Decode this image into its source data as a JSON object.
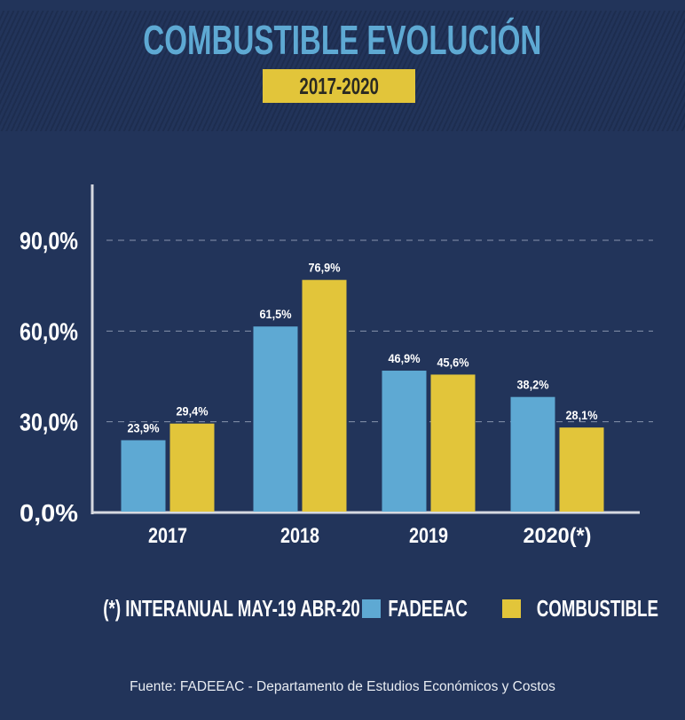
{
  "header": {
    "title": "COMBUSTIBLE EVOLUCIÓN",
    "period": "2017-2020"
  },
  "chart_data": {
    "type": "bar",
    "categories": [
      "2017",
      "2018",
      "2019",
      "2020(*)"
    ],
    "series": [
      {
        "name": "FADEEAC",
        "values": [
          23.9,
          61.5,
          46.9,
          38.2
        ],
        "labels": [
          "23,9%",
          "61,5%",
          "46,9%",
          "38,2%"
        ],
        "color": "#5ea9d3"
      },
      {
        "name": "COMBUSTIBLE",
        "values": [
          29.4,
          76.9,
          45.6,
          28.1
        ],
        "labels": [
          "29,4%",
          "76,9%",
          "45,6%",
          "28,1%"
        ],
        "color": "#e2c53a"
      }
    ],
    "yticks": [
      0,
      30,
      60,
      90
    ],
    "ytick_labels": [
      "0,0%",
      "30,0%",
      "60,0%",
      "90,0%"
    ],
    "ylim": [
      0,
      110
    ],
    "grid": "dashed horizontal",
    "legend": "bottom"
  },
  "note": "(*) INTERANUAL MAY-19 ABR-20",
  "source": "Fuente: FADEEAC - Departamento de Estudios Económicos y Costos"
}
